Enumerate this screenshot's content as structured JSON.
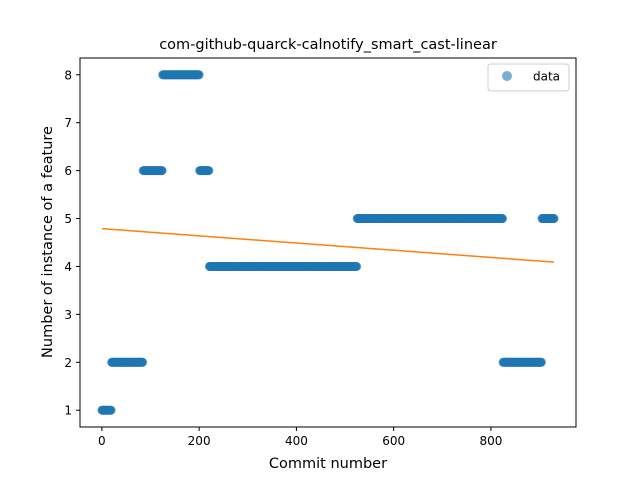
{
  "chart_data": {
    "type": "scatter",
    "title": "com-github-quarck-calnotify_smart_cast-linear",
    "xlabel": "Commit number",
    "ylabel": "Number of instance of a feature",
    "xlim": [
      -45,
      975
    ],
    "ylim": [
      0.65,
      8.35
    ],
    "xticks": [
      0,
      200,
      400,
      600,
      800
    ],
    "yticks": [
      1,
      2,
      3,
      4,
      5,
      6,
      7,
      8
    ],
    "legend": {
      "position": "top-right",
      "entries": [
        "data"
      ]
    },
    "colors": {
      "data": "#1f77b4",
      "trend": "#ff7f0e"
    },
    "series": [
      {
        "name": "data",
        "kind": "scatter",
        "segments": [
          {
            "x_start": 0,
            "x_end": 19,
            "y": 1
          },
          {
            "x_start": 20,
            "x_end": 84,
            "y": 2
          },
          {
            "x_start": 85,
            "x_end": 124,
            "y": 6
          },
          {
            "x_start": 125,
            "x_end": 200,
            "y": 8
          },
          {
            "x_start": 201,
            "x_end": 220,
            "y": 6
          },
          {
            "x_start": 221,
            "x_end": 524,
            "y": 4
          },
          {
            "x_start": 525,
            "x_end": 824,
            "y": 5
          },
          {
            "x_start": 825,
            "x_end": 904,
            "y": 2
          },
          {
            "x_start": 905,
            "x_end": 930,
            "y": 5
          }
        ]
      },
      {
        "kind": "line",
        "points": [
          [
            0,
            4.79
          ],
          [
            930,
            4.09
          ]
        ]
      }
    ]
  }
}
